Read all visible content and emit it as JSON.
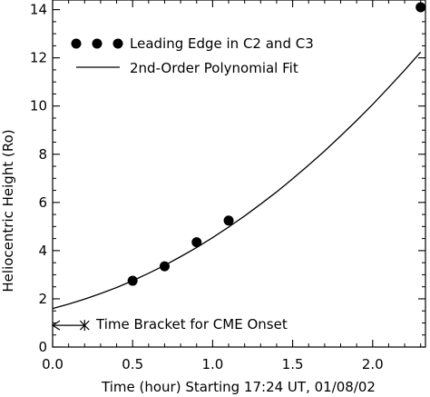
{
  "chart_data": {
    "type": "scatter",
    "xlabel": "Time (hour) Starting 17:24 UT, 01/08/02",
    "ylabel": "Heliocentric Height (Ro)",
    "xlim": [
      0.0,
      2.33
    ],
    "ylim": [
      0,
      14.4
    ],
    "x_ticks": [
      0.0,
      0.5,
      1.0,
      1.5,
      2.0
    ],
    "x_tick_labels": [
      "0.0",
      "0.5",
      "1.0",
      "1.5",
      "2.0"
    ],
    "y_ticks": [
      0,
      2,
      4,
      6,
      8,
      10,
      12,
      14
    ],
    "y_tick_labels": [
      "0",
      "2",
      "4",
      "6",
      "8",
      "10",
      "12",
      "14"
    ],
    "grid": false,
    "legend_position": "top-left",
    "series": [
      {
        "name": "Leading Edge in C2 and C3",
        "style": "markers",
        "x": [
          0.5,
          0.7,
          0.9,
          1.1,
          2.3
        ],
        "y": [
          2.75,
          3.35,
          4.35,
          5.25,
          14.1
        ]
      },
      {
        "name": "2nd-Order Polynomial Fit",
        "style": "line",
        "x": [
          0.0,
          0.1,
          0.2,
          0.3,
          0.4,
          0.5,
          0.6,
          0.7,
          0.8,
          0.9,
          1.0,
          1.1,
          1.2,
          1.3,
          1.4,
          1.5,
          1.6,
          1.7,
          1.8,
          1.9,
          2.0,
          2.1,
          2.2,
          2.3
        ],
        "y": [
          1.6,
          1.78,
          1.99,
          2.22,
          2.47,
          2.75,
          3.06,
          3.39,
          3.75,
          4.13,
          4.54,
          4.98,
          5.44,
          5.93,
          6.44,
          6.98,
          7.55,
          8.14,
          8.76,
          9.4,
          10.07,
          10.77,
          11.49,
          12.24
        ]
      }
    ],
    "annotation": {
      "text": "Time Bracket for CME Onset",
      "x_start": 0.0,
      "x_end": 0.2,
      "y": 0.9
    },
    "colors": {
      "axes": "#000000",
      "series": "#000000",
      "background": "#ffffff"
    }
  }
}
